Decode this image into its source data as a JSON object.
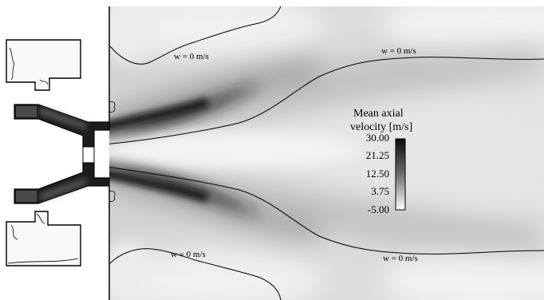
{
  "figure": {
    "contour_labels": [
      "w = 0 m/s",
      "w = 0 m/s",
      "w = 0 m/s",
      "w = 0 m/s"
    ],
    "colorbar": {
      "title_line1": "Mean axial",
      "title_line2": "velocity [m/s]",
      "ticks": [
        "30.00",
        "21.25",
        "12.50",
        "3.75",
        "-5.00"
      ],
      "vmax": 30.0,
      "vmin": -5.0
    },
    "colors": {
      "high": "#0a0a0a",
      "low": "#ffffff",
      "line": "#000000"
    }
  }
}
